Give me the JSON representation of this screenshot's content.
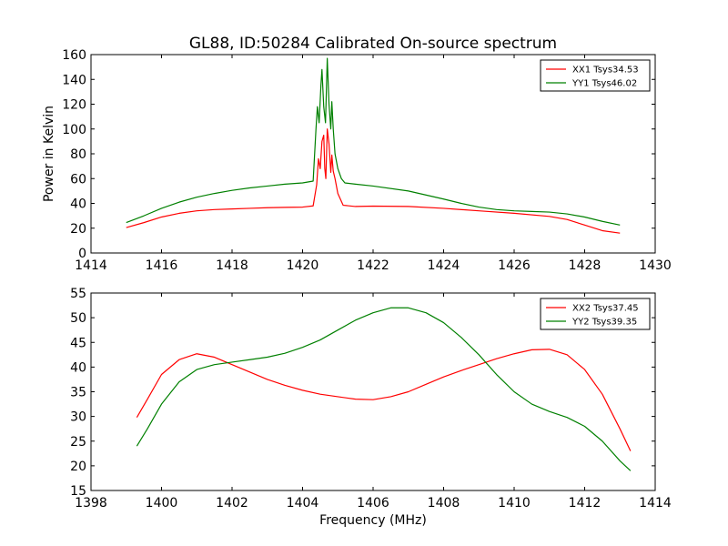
{
  "chart_data": [
    {
      "type": "line",
      "title": "GL88, ID:50284 Calibrated On-source spectrum",
      "xlabel": "",
      "ylabel": "Power in Kelvin",
      "xlim": [
        1414,
        1430
      ],
      "ylim": [
        0,
        160
      ],
      "xticks": [
        "1414",
        "1416",
        "1418",
        "1420",
        "1422",
        "1424",
        "1426",
        "1428",
        "1430"
      ],
      "yticks": [
        "0",
        "20",
        "40",
        "60",
        "80",
        "100",
        "120",
        "140",
        "160"
      ],
      "grid": false,
      "legend": "top-right",
      "series": [
        {
          "name": "XX1 Tsys34.53",
          "color": "#ff0000",
          "points": [
            [
              1415.0,
              20.5
            ],
            [
              1415.5,
              24.5
            ],
            [
              1416.0,
              29.0
            ],
            [
              1416.5,
              32.0
            ],
            [
              1417.0,
              34.0
            ],
            [
              1417.5,
              35.0
            ],
            [
              1418.0,
              35.5
            ],
            [
              1418.5,
              36.0
            ],
            [
              1419.0,
              36.5
            ],
            [
              1419.5,
              36.8
            ],
            [
              1420.0,
              37.0
            ],
            [
              1420.3,
              38.0
            ],
            [
              1420.4,
              55.0
            ],
            [
              1420.45,
              76.0
            ],
            [
              1420.5,
              68.0
            ],
            [
              1420.55,
              90.0
            ],
            [
              1420.6,
              95.0
            ],
            [
              1420.63,
              68.0
            ],
            [
              1420.66,
              60.0
            ],
            [
              1420.7,
              100.0
            ],
            [
              1420.75,
              88.0
            ],
            [
              1420.8,
              65.0
            ],
            [
              1420.83,
              79.0
            ],
            [
              1420.87,
              66.0
            ],
            [
              1420.92,
              60.0
            ],
            [
              1421.0,
              48.0
            ],
            [
              1421.15,
              38.5
            ],
            [
              1421.5,
              37.5
            ],
            [
              1422.0,
              37.8
            ],
            [
              1423.0,
              37.5
            ],
            [
              1424.0,
              36.0
            ],
            [
              1425.0,
              34.0
            ],
            [
              1426.0,
              32.0
            ],
            [
              1427.0,
              29.5
            ],
            [
              1427.5,
              27.0
            ],
            [
              1428.0,
              22.5
            ],
            [
              1428.5,
              18.0
            ],
            [
              1429.0,
              16.0
            ]
          ]
        },
        {
          "name": "YY1 Tsys46.02",
          "color": "#008000",
          "points": [
            [
              1415.0,
              24.5
            ],
            [
              1415.5,
              30.0
            ],
            [
              1416.0,
              36.0
            ],
            [
              1416.5,
              41.0
            ],
            [
              1417.0,
              45.0
            ],
            [
              1417.5,
              48.0
            ],
            [
              1418.0,
              50.5
            ],
            [
              1418.5,
              52.5
            ],
            [
              1419.0,
              54.0
            ],
            [
              1419.5,
              55.5
            ],
            [
              1420.0,
              56.5
            ],
            [
              1420.3,
              58.0
            ],
            [
              1420.38,
              100.0
            ],
            [
              1420.42,
              118.0
            ],
            [
              1420.47,
              105.0
            ],
            [
              1420.52,
              135.0
            ],
            [
              1420.55,
              148.0
            ],
            [
              1420.6,
              118.0
            ],
            [
              1420.65,
              105.0
            ],
            [
              1420.7,
              157.0
            ],
            [
              1420.75,
              120.0
            ],
            [
              1420.8,
              100.0
            ],
            [
              1420.83,
              122.0
            ],
            [
              1420.87,
              100.0
            ],
            [
              1420.92,
              80.0
            ],
            [
              1421.0,
              68.0
            ],
            [
              1421.1,
              60.0
            ],
            [
              1421.2,
              56.5
            ],
            [
              1421.5,
              55.5
            ],
            [
              1422.0,
              54.0
            ],
            [
              1423.0,
              50.0
            ],
            [
              1424.0,
              43.5
            ],
            [
              1424.5,
              40.0
            ],
            [
              1425.0,
              37.0
            ],
            [
              1425.5,
              35.0
            ],
            [
              1426.0,
              34.0
            ],
            [
              1426.5,
              33.5
            ],
            [
              1427.0,
              33.0
            ],
            [
              1427.5,
              31.5
            ],
            [
              1428.0,
              29.0
            ],
            [
              1428.5,
              25.5
            ],
            [
              1429.0,
              22.5
            ]
          ]
        }
      ]
    },
    {
      "type": "line",
      "title": "",
      "xlabel": "Frequency (MHz)",
      "ylabel": "",
      "xlim": [
        1398,
        1414
      ],
      "ylim": [
        15,
        55
      ],
      "xticks": [
        "1398",
        "1400",
        "1402",
        "1404",
        "1406",
        "1408",
        "1410",
        "1412",
        "1414"
      ],
      "yticks": [
        "15",
        "20",
        "25",
        "30",
        "35",
        "40",
        "45",
        "50",
        "55"
      ],
      "grid": false,
      "legend": "top-right",
      "series": [
        {
          "name": "XX2 Tsys37.45",
          "color": "#ff0000",
          "points": [
            [
              1399.3,
              29.8
            ],
            [
              1399.6,
              33.5
            ],
            [
              1400.0,
              38.5
            ],
            [
              1400.5,
              41.5
            ],
            [
              1401.0,
              42.7
            ],
            [
              1401.5,
              42.0
            ],
            [
              1402.0,
              40.5
            ],
            [
              1402.5,
              39.0
            ],
            [
              1403.0,
              37.5
            ],
            [
              1403.5,
              36.3
            ],
            [
              1404.0,
              35.3
            ],
            [
              1404.5,
              34.5
            ],
            [
              1405.0,
              34.0
            ],
            [
              1405.5,
              33.5
            ],
            [
              1406.0,
              33.4
            ],
            [
              1406.5,
              34.0
            ],
            [
              1407.0,
              35.0
            ],
            [
              1407.5,
              36.5
            ],
            [
              1408.0,
              38.0
            ],
            [
              1408.5,
              39.3
            ],
            [
              1409.0,
              40.5
            ],
            [
              1409.5,
              41.7
            ],
            [
              1410.0,
              42.7
            ],
            [
              1410.5,
              43.5
            ],
            [
              1411.0,
              43.6
            ],
            [
              1411.5,
              42.5
            ],
            [
              1412.0,
              39.5
            ],
            [
              1412.5,
              34.5
            ],
            [
              1413.0,
              27.5
            ],
            [
              1413.3,
              23.0
            ]
          ]
        },
        {
          "name": "YY2 Tsys39.35",
          "color": "#008000",
          "points": [
            [
              1399.3,
              24.0
            ],
            [
              1399.6,
              27.5
            ],
            [
              1400.0,
              32.5
            ],
            [
              1400.5,
              37.0
            ],
            [
              1401.0,
              39.5
            ],
            [
              1401.5,
              40.5
            ],
            [
              1402.0,
              41.0
            ],
            [
              1402.5,
              41.5
            ],
            [
              1403.0,
              42.0
            ],
            [
              1403.5,
              42.8
            ],
            [
              1404.0,
              44.0
            ],
            [
              1404.5,
              45.5
            ],
            [
              1405.0,
              47.5
            ],
            [
              1405.5,
              49.5
            ],
            [
              1406.0,
              51.0
            ],
            [
              1406.5,
              52.0
            ],
            [
              1407.0,
              52.0
            ],
            [
              1407.5,
              51.0
            ],
            [
              1408.0,
              49.0
            ],
            [
              1408.5,
              46.0
            ],
            [
              1409.0,
              42.5
            ],
            [
              1409.5,
              38.5
            ],
            [
              1410.0,
              35.0
            ],
            [
              1410.5,
              32.5
            ],
            [
              1411.0,
              31.0
            ],
            [
              1411.5,
              29.8
            ],
            [
              1412.0,
              28.0
            ],
            [
              1412.5,
              25.0
            ],
            [
              1413.0,
              21.0
            ],
            [
              1413.3,
              19.0
            ]
          ]
        }
      ]
    }
  ]
}
